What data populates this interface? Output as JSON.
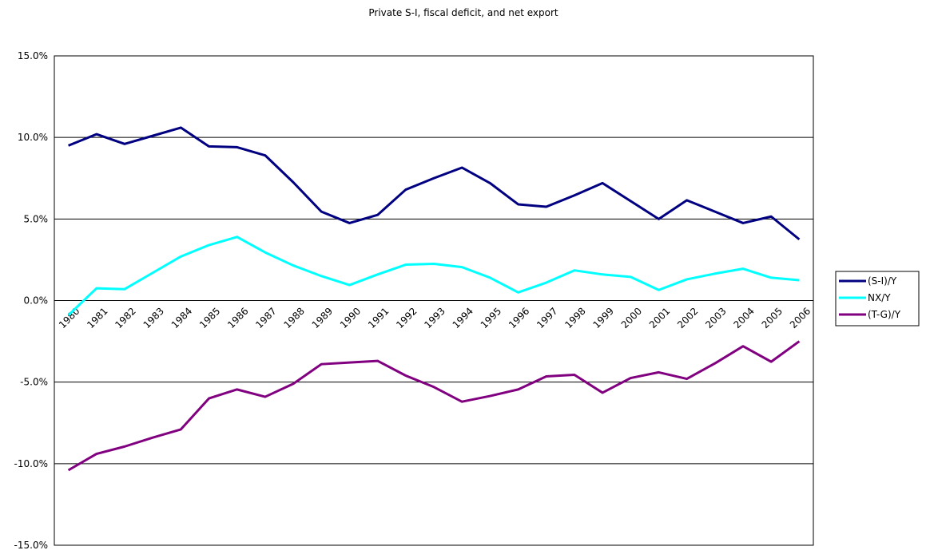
{
  "chart_data": {
    "type": "line",
    "title": "Private S-I, fiscal deficit, and net export",
    "categories": [
      "1980",
      "1981",
      "1982",
      "1983",
      "1984",
      "1985",
      "1986",
      "1987",
      "1988",
      "1989",
      "1990",
      "1991",
      "1992",
      "1993",
      "1994",
      "1995",
      "1996",
      "1997",
      "1998",
      "1999",
      "2000",
      "2001",
      "2002",
      "2003",
      "2004",
      "2005",
      "2006"
    ],
    "series": [
      {
        "name": "(S-I)/Y",
        "color": "#000080",
        "values": [
          9.5,
          10.2,
          9.6,
          10.1,
          10.6,
          9.45,
          9.4,
          8.9,
          7.25,
          5.45,
          4.75,
          5.25,
          6.8,
          7.5,
          8.15,
          7.2,
          5.9,
          5.75,
          6.45,
          7.2,
          6.1,
          5.0,
          6.15,
          5.45,
          4.75,
          5.15,
          3.75
        ]
      },
      {
        "name": "NX/Y",
        "color": "#00ffff",
        "values": [
          -0.9,
          0.75,
          0.7,
          1.7,
          2.7,
          3.4,
          3.9,
          2.95,
          2.15,
          1.5,
          0.95,
          1.6,
          2.2,
          2.25,
          2.05,
          1.4,
          0.5,
          1.1,
          1.85,
          1.6,
          1.45,
          0.65,
          1.3,
          1.65,
          1.95,
          1.4,
          1.25
        ]
      },
      {
        "name": "(T-G)/Y",
        "color": "#800080",
        "values": [
          -10.4,
          -9.4,
          -8.95,
          -8.4,
          -7.9,
          -6.0,
          -5.45,
          -5.9,
          -5.1,
          -3.9,
          -3.8,
          -3.7,
          -4.6,
          -5.3,
          -6.2,
          -5.85,
          -5.45,
          -4.65,
          -4.55,
          -5.65,
          -4.75,
          -4.4,
          -4.8,
          -3.85,
          -2.8,
          -3.75,
          -2.5
        ]
      }
    ],
    "ylim": [
      -15,
      15
    ],
    "yticks": [
      {
        "value": -15,
        "label": "-15.0%"
      },
      {
        "value": -10,
        "label": "-10.0%"
      },
      {
        "value": -5,
        "label": "-5.0%"
      },
      {
        "value": 0,
        "label": "0.0%"
      },
      {
        "value": 5,
        "label": "5.0%"
      },
      {
        "value": 10,
        "label": "10.0%"
      },
      {
        "value": 15,
        "label": "15.0%"
      }
    ],
    "grid": true,
    "legend": "right"
  }
}
